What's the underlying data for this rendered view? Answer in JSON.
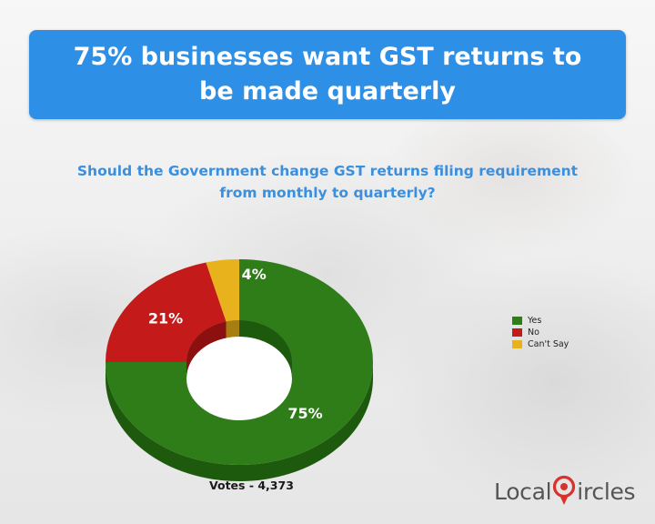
{
  "banner": {
    "title": "75% businesses want GST returns to be made quarterly"
  },
  "question": "Should the Government change GST returns filing requirement from monthly to quarterly?",
  "votes_label": "Votes - 4,373",
  "logo": {
    "text_left": "Local",
    "text_right": "ircles",
    "icon": "map-pin-circle-icon"
  },
  "colors": {
    "banner": "#2e8fe6",
    "question": "#3a8fde",
    "yes": "#2e7d18",
    "no": "#c51a1a",
    "cant_say": "#e8b21c",
    "logo_red": "#d9312b"
  },
  "chart_data": {
    "type": "pie",
    "style": "3d-donut",
    "title": "",
    "legend_position": "right",
    "categories": [
      "Yes",
      "No",
      "Can't Say"
    ],
    "values": [
      75,
      21,
      4
    ],
    "labels": [
      "75%",
      "21%",
      "4%"
    ],
    "colors": [
      "#2e7d18",
      "#c51a1a",
      "#e8b21c"
    ],
    "side_colors": [
      "#1d5a0e",
      "#8c1010",
      "#a77e10"
    ]
  }
}
